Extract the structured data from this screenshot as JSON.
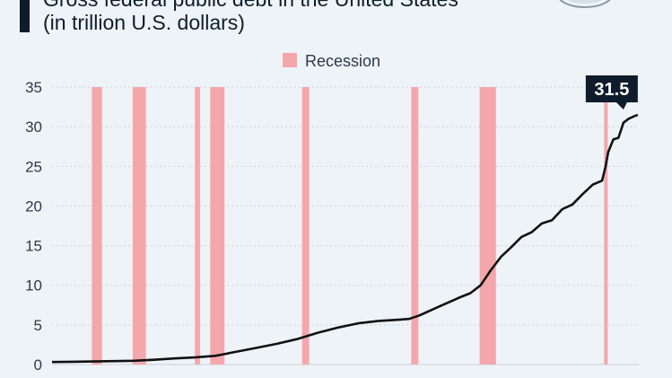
{
  "header": {
    "title": "Gross federal public debt in the United States",
    "subtitle": "(in trillion U.S. dollars)"
  },
  "colors": {
    "line": "#111111",
    "recession": "#f4a7ab",
    "callout_bg": "#0e1c2c",
    "callout_text": "#ffffff",
    "gridline": "#c9d1da",
    "accent": "#0e1c2c"
  },
  "chart_data": {
    "type": "line",
    "title": "Gross federal public debt in the United States",
    "subtitle": "(in trillion U.S. dollars)",
    "xlabel": "",
    "ylabel": "",
    "ylim": [
      0,
      35
    ],
    "yticks": [
      "0",
      "5",
      "10",
      "15",
      "20",
      "25",
      "30",
      "35"
    ],
    "xlim": [
      1966,
      2023.5
    ],
    "grid": true,
    "legend": {
      "position": "top-center",
      "entries": [
        "Recession"
      ]
    },
    "recessions": [
      {
        "start": 1969.9,
        "end": 1970.9
      },
      {
        "start": 1973.9,
        "end": 1975.2
      },
      {
        "start": 1980.0,
        "end": 1980.5
      },
      {
        "start": 1981.5,
        "end": 1982.9
      },
      {
        "start": 1990.5,
        "end": 1991.2
      },
      {
        "start": 2001.2,
        "end": 2001.9
      },
      {
        "start": 2007.9,
        "end": 2009.5
      },
      {
        "start": 2020.1,
        "end": 2020.4
      }
    ],
    "series": [
      {
        "values": [
          [
            1966,
            0.32
          ],
          [
            1968,
            0.35
          ],
          [
            1970,
            0.38
          ],
          [
            1972,
            0.43
          ],
          [
            1974,
            0.48
          ],
          [
            1976,
            0.6
          ],
          [
            1978,
            0.77
          ],
          [
            1980,
            0.9
          ],
          [
            1982,
            1.1
          ],
          [
            1983,
            1.35
          ],
          [
            1984,
            1.6
          ],
          [
            1986,
            2.1
          ],
          [
            1988,
            2.6
          ],
          [
            1990,
            3.2
          ],
          [
            1992,
            4.0
          ],
          [
            1994,
            4.65
          ],
          [
            1996,
            5.2
          ],
          [
            1998,
            5.5
          ],
          [
            2000,
            5.65
          ],
          [
            2001,
            5.75
          ],
          [
            2002,
            6.2
          ],
          [
            2004,
            7.35
          ],
          [
            2006,
            8.5
          ],
          [
            2007,
            9.0
          ],
          [
            2008,
            10.0
          ],
          [
            2009,
            11.9
          ],
          [
            2010,
            13.6
          ],
          [
            2011,
            14.8
          ],
          [
            2012,
            16.1
          ],
          [
            2013,
            16.7
          ],
          [
            2014,
            17.8
          ],
          [
            2015,
            18.2
          ],
          [
            2016,
            19.6
          ],
          [
            2017,
            20.2
          ],
          [
            2018,
            21.5
          ],
          [
            2019,
            22.7
          ],
          [
            2019.9,
            23.2
          ],
          [
            2020.25,
            25.0
          ],
          [
            2020.5,
            26.8
          ],
          [
            2021,
            28.4
          ],
          [
            2021.5,
            28.6
          ],
          [
            2022,
            30.5
          ],
          [
            2022.5,
            31.0
          ],
          [
            2023,
            31.3
          ],
          [
            2023.4,
            31.5
          ]
        ]
      }
    ],
    "annotations": [
      {
        "x": 2023.4,
        "y": 31.5,
        "label": "31.5"
      }
    ]
  }
}
